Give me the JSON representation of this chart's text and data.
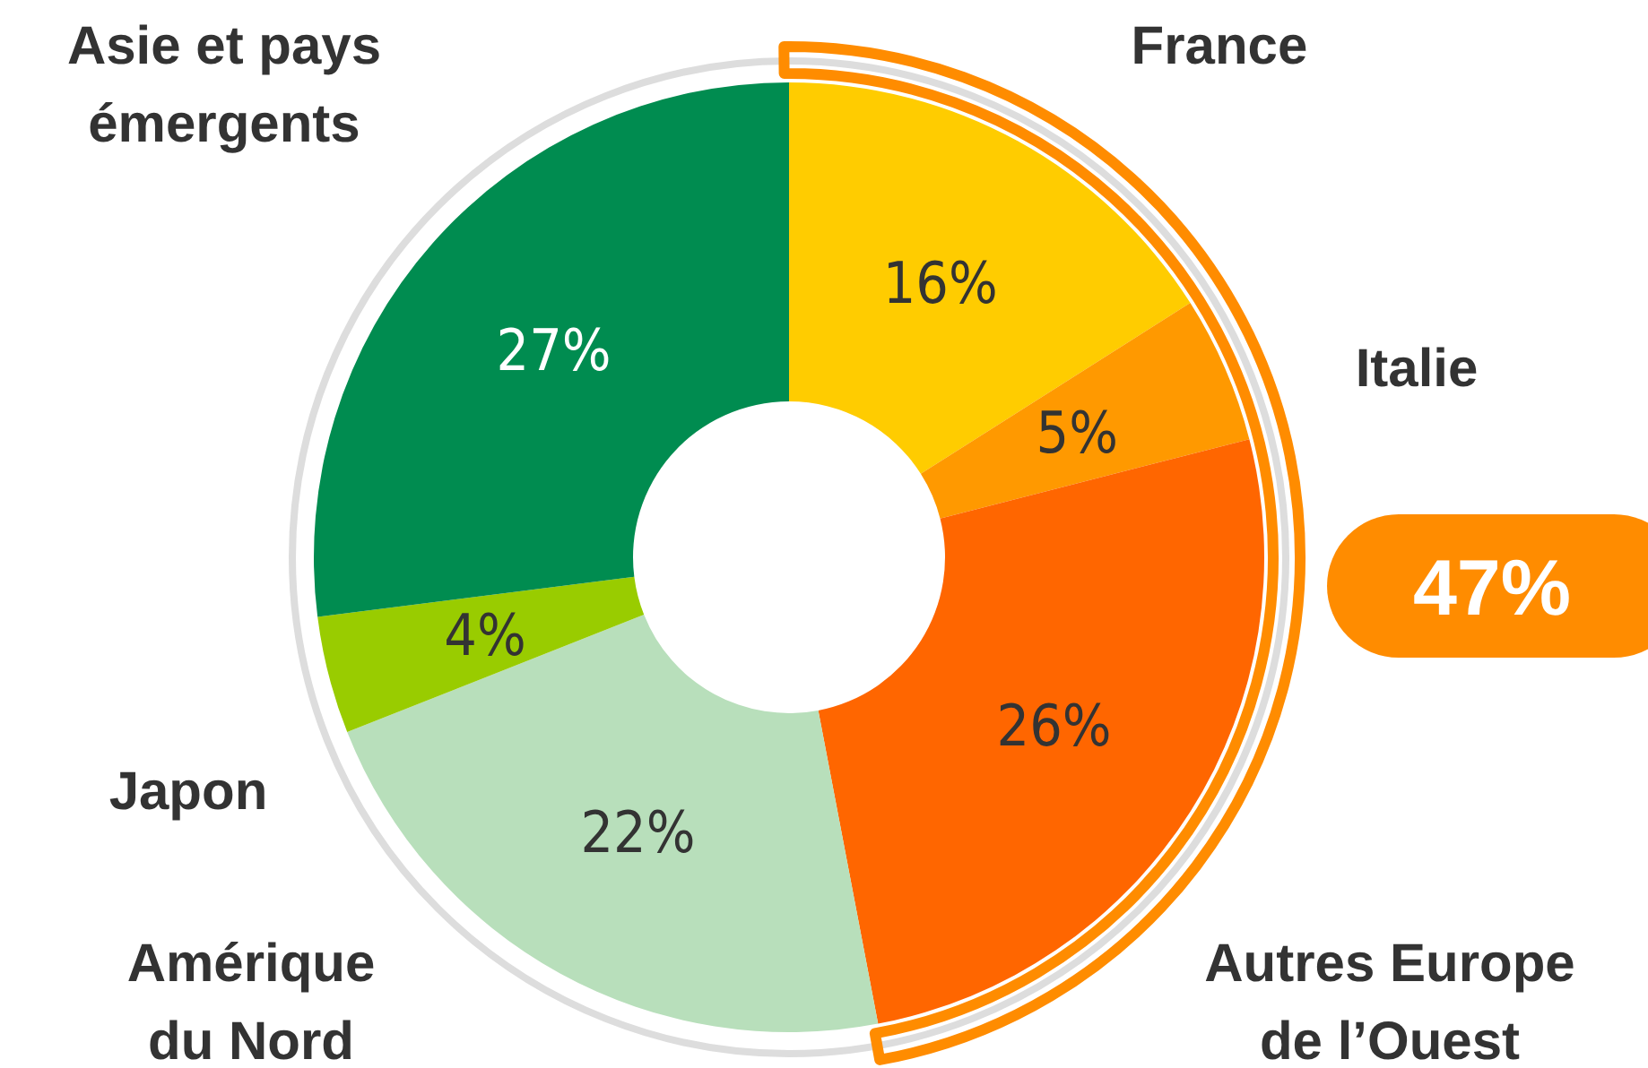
{
  "chart_data": {
    "type": "donut",
    "categories": [
      "France",
      "Italie",
      "Autres Europe de l’Ouest",
      "Amérique du Nord",
      "Japon",
      "Asie et pays émergents"
    ],
    "values": [
      16,
      5,
      26,
      22,
      4,
      27
    ],
    "value_labels": [
      "16%",
      "5%",
      "26%",
      "22%",
      "4%",
      "27%"
    ],
    "colors": [
      "#ffcc00",
      "#ff9900",
      "#ff6600",
      "#b8dfbb",
      "#99cc00",
      "#008c50"
    ],
    "annotations": [
      "47%"
    ]
  }
}
